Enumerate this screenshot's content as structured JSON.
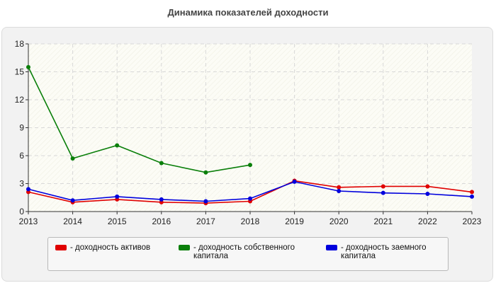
{
  "chart_data": {
    "type": "line",
    "title": "Динамика показателей доходности",
    "xlabel": "",
    "ylabel": "",
    "x": [
      "2013",
      "2014",
      "2015",
      "2016",
      "2017",
      "2018",
      "2019",
      "2020",
      "2021",
      "2022",
      "2023"
    ],
    "y_ticks": [
      "0",
      "3",
      "6",
      "9",
      "12",
      "15",
      "18"
    ],
    "ylim": [
      0,
      18
    ],
    "grid": true,
    "legend_position": "bottom",
    "series": [
      {
        "name": "- доходность активов",
        "color": "#e00000",
        "values": [
          2.1,
          1.0,
          1.3,
          1.0,
          0.9,
          1.1,
          3.3,
          2.6,
          2.7,
          2.7,
          2.1
        ]
      },
      {
        "name": "- доходность собственного капитала",
        "color": "#0a7f0a",
        "values": [
          15.5,
          5.7,
          7.1,
          5.2,
          4.2,
          5.0,
          null,
          null,
          null,
          null,
          null
        ]
      },
      {
        "name": "- доходность заемного капитала",
        "color": "#0000dd",
        "values": [
          2.4,
          1.2,
          1.6,
          1.3,
          1.1,
          1.4,
          3.2,
          2.2,
          2.0,
          1.9,
          1.6
        ]
      }
    ]
  }
}
